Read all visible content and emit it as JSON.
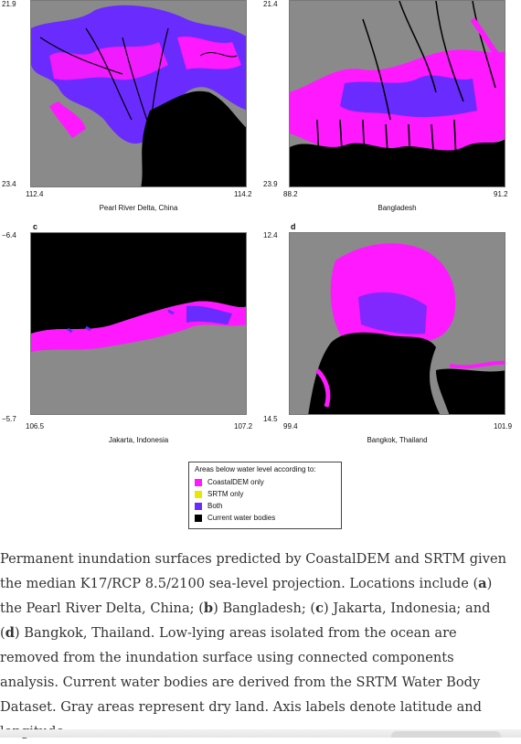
{
  "colors": {
    "dry_land": "#8a8a8a",
    "coastaldem_only": "#ff19ff",
    "srtm_only": "#e8e800",
    "both": "#6a2bff",
    "water": "#000000"
  },
  "panels": {
    "a": {
      "label": "",
      "lat_top": "21.9",
      "lat_bottom": "23.4",
      "lon_left": "112.4",
      "lon_right": "114.2",
      "place": "Pearl River Delta, China"
    },
    "b": {
      "label": "",
      "lat_top": "21.4",
      "lat_bottom": "23.9",
      "lon_left": "88.2",
      "lon_right": "91.2",
      "place": "Bangladesh"
    },
    "c": {
      "label": "c",
      "lat_top": "−6.4",
      "lat_bottom": "−5.7",
      "lon_left": "106.5",
      "lon_right": "107.2",
      "place": "Jakarta, Indonesia"
    },
    "d": {
      "label": "d",
      "lat_top": "12.4",
      "lat_bottom": "14.5",
      "lon_left": "99.4",
      "lon_right": "101.9",
      "place": "Bangkok, Thailand"
    }
  },
  "legend": {
    "title": "Areas below water level according to:",
    "items": [
      {
        "label": "CoastalDEM only",
        "color": "#ff19ff"
      },
      {
        "label": "SRTM only",
        "color": "#e8e800"
      },
      {
        "label": "Both",
        "color": "#6a2bff"
      },
      {
        "label": "Current water bodies",
        "color": "#000000"
      }
    ]
  },
  "caption": {
    "t1": "Permanent inundation surfaces predicted by CoastalDEM and SRTM given the median K17/RCP 8.5/2100 sea-level projection. Locations include (",
    "a": "a",
    "t2": ") the Pearl River Delta, China; (",
    "b": "b",
    "t3": ") Bangladesh; (",
    "c": "c",
    "t4": ") Jakarta, Indonesia; and (",
    "d": "d",
    "t5": ") Bangkok, Thailand. Low-lying areas isolated from the ocean are removed from the inundation surface using connected components analysis. Current water bodies are derived from the SRTM Water Body Dataset. Gray areas represent dry land. Axis labels denote latitude and longitude"
  }
}
